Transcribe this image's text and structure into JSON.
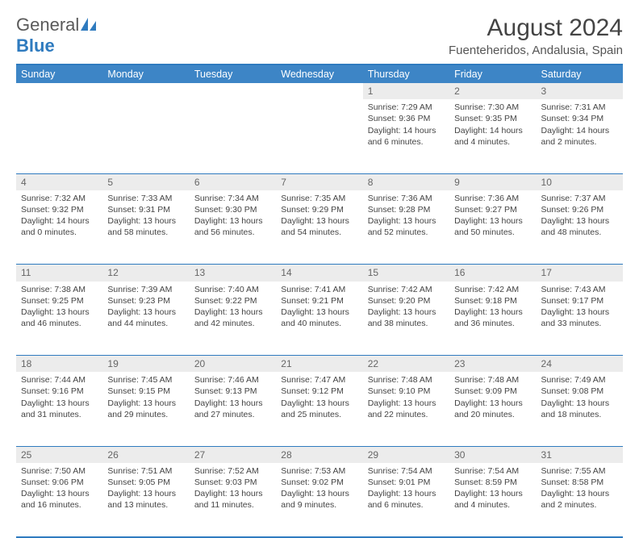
{
  "logo": {
    "text_a": "General",
    "text_b": "Blue"
  },
  "header": {
    "month_title": "August 2024",
    "location": "Fuenteheridos, Andalusia, Spain"
  },
  "colors": {
    "brand_blue": "#3d85c6",
    "border_blue": "#2f7bbf",
    "daynum_bg": "#ececec",
    "text": "#444444"
  },
  "weekdays": [
    "Sunday",
    "Monday",
    "Tuesday",
    "Wednesday",
    "Thursday",
    "Friday",
    "Saturday"
  ],
  "weeks": [
    [
      null,
      null,
      null,
      null,
      {
        "n": "1",
        "sr": "Sunrise: 7:29 AM",
        "ss": "Sunset: 9:36 PM",
        "d1": "Daylight: 14 hours",
        "d2": "and 6 minutes."
      },
      {
        "n": "2",
        "sr": "Sunrise: 7:30 AM",
        "ss": "Sunset: 9:35 PM",
        "d1": "Daylight: 14 hours",
        "d2": "and 4 minutes."
      },
      {
        "n": "3",
        "sr": "Sunrise: 7:31 AM",
        "ss": "Sunset: 9:34 PM",
        "d1": "Daylight: 14 hours",
        "d2": "and 2 minutes."
      }
    ],
    [
      {
        "n": "4",
        "sr": "Sunrise: 7:32 AM",
        "ss": "Sunset: 9:32 PM",
        "d1": "Daylight: 14 hours",
        "d2": "and 0 minutes."
      },
      {
        "n": "5",
        "sr": "Sunrise: 7:33 AM",
        "ss": "Sunset: 9:31 PM",
        "d1": "Daylight: 13 hours",
        "d2": "and 58 minutes."
      },
      {
        "n": "6",
        "sr": "Sunrise: 7:34 AM",
        "ss": "Sunset: 9:30 PM",
        "d1": "Daylight: 13 hours",
        "d2": "and 56 minutes."
      },
      {
        "n": "7",
        "sr": "Sunrise: 7:35 AM",
        "ss": "Sunset: 9:29 PM",
        "d1": "Daylight: 13 hours",
        "d2": "and 54 minutes."
      },
      {
        "n": "8",
        "sr": "Sunrise: 7:36 AM",
        "ss": "Sunset: 9:28 PM",
        "d1": "Daylight: 13 hours",
        "d2": "and 52 minutes."
      },
      {
        "n": "9",
        "sr": "Sunrise: 7:36 AM",
        "ss": "Sunset: 9:27 PM",
        "d1": "Daylight: 13 hours",
        "d2": "and 50 minutes."
      },
      {
        "n": "10",
        "sr": "Sunrise: 7:37 AM",
        "ss": "Sunset: 9:26 PM",
        "d1": "Daylight: 13 hours",
        "d2": "and 48 minutes."
      }
    ],
    [
      {
        "n": "11",
        "sr": "Sunrise: 7:38 AM",
        "ss": "Sunset: 9:25 PM",
        "d1": "Daylight: 13 hours",
        "d2": "and 46 minutes."
      },
      {
        "n": "12",
        "sr": "Sunrise: 7:39 AM",
        "ss": "Sunset: 9:23 PM",
        "d1": "Daylight: 13 hours",
        "d2": "and 44 minutes."
      },
      {
        "n": "13",
        "sr": "Sunrise: 7:40 AM",
        "ss": "Sunset: 9:22 PM",
        "d1": "Daylight: 13 hours",
        "d2": "and 42 minutes."
      },
      {
        "n": "14",
        "sr": "Sunrise: 7:41 AM",
        "ss": "Sunset: 9:21 PM",
        "d1": "Daylight: 13 hours",
        "d2": "and 40 minutes."
      },
      {
        "n": "15",
        "sr": "Sunrise: 7:42 AM",
        "ss": "Sunset: 9:20 PM",
        "d1": "Daylight: 13 hours",
        "d2": "and 38 minutes."
      },
      {
        "n": "16",
        "sr": "Sunrise: 7:42 AM",
        "ss": "Sunset: 9:18 PM",
        "d1": "Daylight: 13 hours",
        "d2": "and 36 minutes."
      },
      {
        "n": "17",
        "sr": "Sunrise: 7:43 AM",
        "ss": "Sunset: 9:17 PM",
        "d1": "Daylight: 13 hours",
        "d2": "and 33 minutes."
      }
    ],
    [
      {
        "n": "18",
        "sr": "Sunrise: 7:44 AM",
        "ss": "Sunset: 9:16 PM",
        "d1": "Daylight: 13 hours",
        "d2": "and 31 minutes."
      },
      {
        "n": "19",
        "sr": "Sunrise: 7:45 AM",
        "ss": "Sunset: 9:15 PM",
        "d1": "Daylight: 13 hours",
        "d2": "and 29 minutes."
      },
      {
        "n": "20",
        "sr": "Sunrise: 7:46 AM",
        "ss": "Sunset: 9:13 PM",
        "d1": "Daylight: 13 hours",
        "d2": "and 27 minutes."
      },
      {
        "n": "21",
        "sr": "Sunrise: 7:47 AM",
        "ss": "Sunset: 9:12 PM",
        "d1": "Daylight: 13 hours",
        "d2": "and 25 minutes."
      },
      {
        "n": "22",
        "sr": "Sunrise: 7:48 AM",
        "ss": "Sunset: 9:10 PM",
        "d1": "Daylight: 13 hours",
        "d2": "and 22 minutes."
      },
      {
        "n": "23",
        "sr": "Sunrise: 7:48 AM",
        "ss": "Sunset: 9:09 PM",
        "d1": "Daylight: 13 hours",
        "d2": "and 20 minutes."
      },
      {
        "n": "24",
        "sr": "Sunrise: 7:49 AM",
        "ss": "Sunset: 9:08 PM",
        "d1": "Daylight: 13 hours",
        "d2": "and 18 minutes."
      }
    ],
    [
      {
        "n": "25",
        "sr": "Sunrise: 7:50 AM",
        "ss": "Sunset: 9:06 PM",
        "d1": "Daylight: 13 hours",
        "d2": "and 16 minutes."
      },
      {
        "n": "26",
        "sr": "Sunrise: 7:51 AM",
        "ss": "Sunset: 9:05 PM",
        "d1": "Daylight: 13 hours",
        "d2": "and 13 minutes."
      },
      {
        "n": "27",
        "sr": "Sunrise: 7:52 AM",
        "ss": "Sunset: 9:03 PM",
        "d1": "Daylight: 13 hours",
        "d2": "and 11 minutes."
      },
      {
        "n": "28",
        "sr": "Sunrise: 7:53 AM",
        "ss": "Sunset: 9:02 PM",
        "d1": "Daylight: 13 hours",
        "d2": "and 9 minutes."
      },
      {
        "n": "29",
        "sr": "Sunrise: 7:54 AM",
        "ss": "Sunset: 9:01 PM",
        "d1": "Daylight: 13 hours",
        "d2": "and 6 minutes."
      },
      {
        "n": "30",
        "sr": "Sunrise: 7:54 AM",
        "ss": "Sunset: 8:59 PM",
        "d1": "Daylight: 13 hours",
        "d2": "and 4 minutes."
      },
      {
        "n": "31",
        "sr": "Sunrise: 7:55 AM",
        "ss": "Sunset: 8:58 PM",
        "d1": "Daylight: 13 hours",
        "d2": "and 2 minutes."
      }
    ]
  ]
}
